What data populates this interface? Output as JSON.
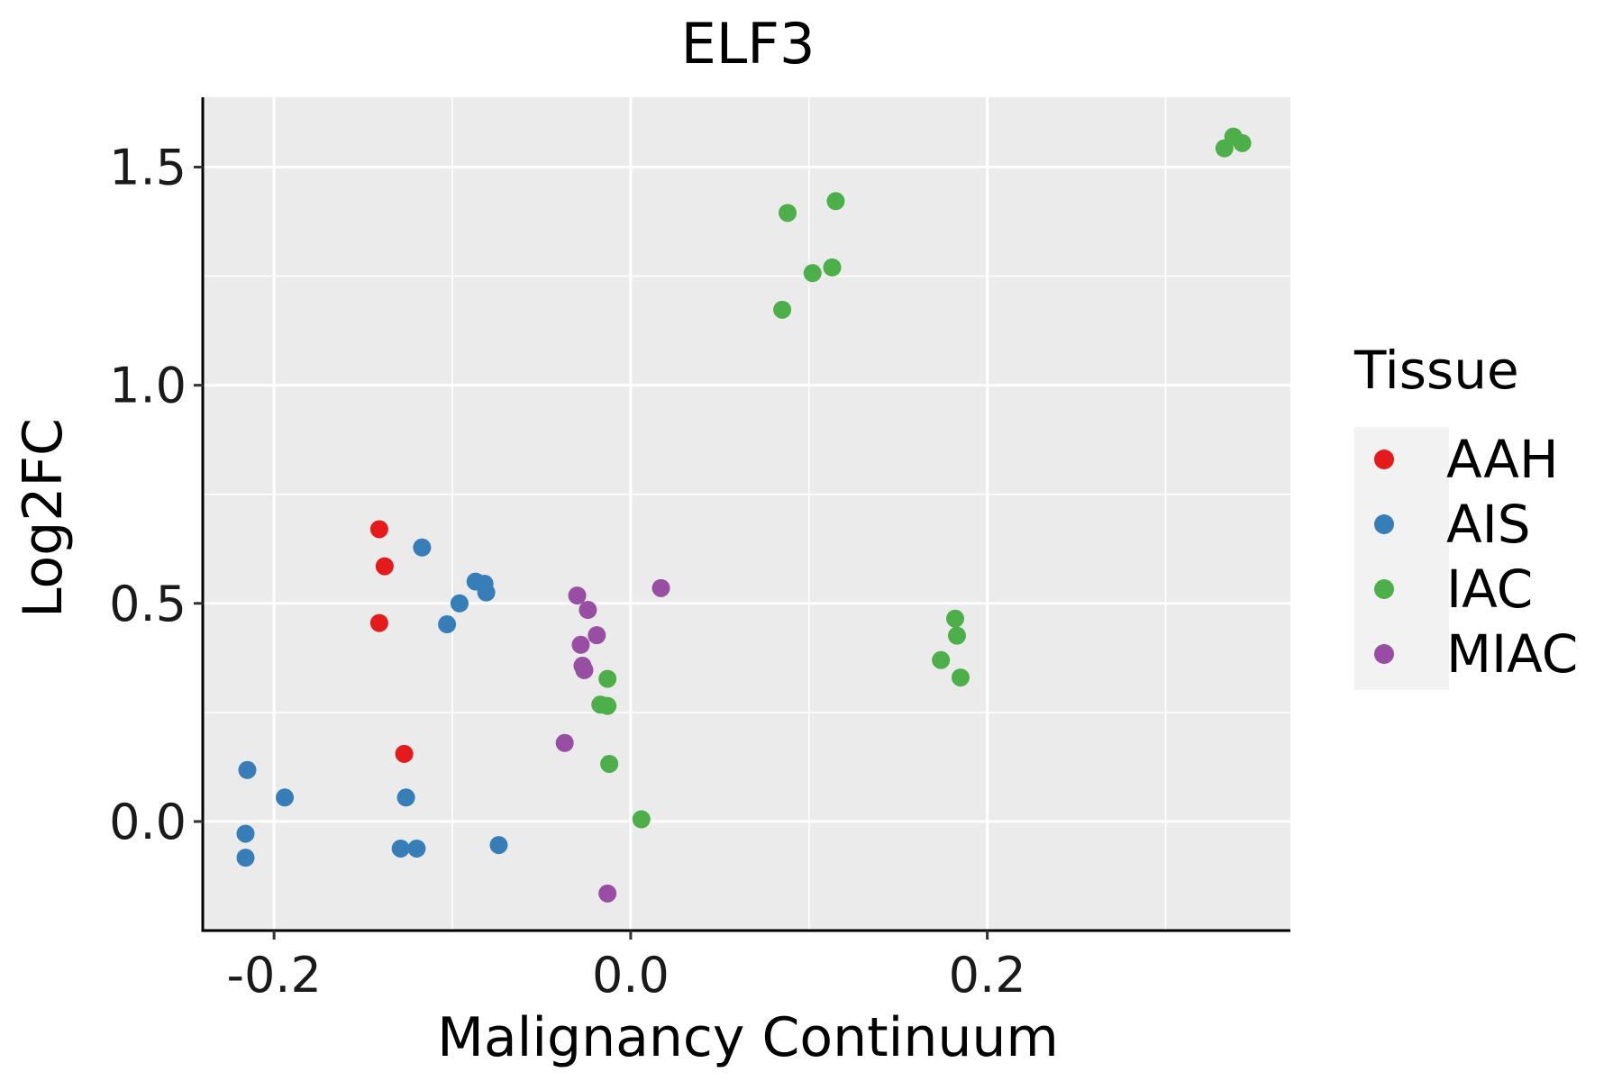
{
  "chart_data": {
    "type": "scatter",
    "title": "ELF3",
    "xlabel": "Malignancy Continuum",
    "ylabel": "Log2FC",
    "xlim": [
      -0.24,
      0.37
    ],
    "ylim": [
      -0.25,
      1.66
    ],
    "x_ticks": [
      -0.2,
      0.0,
      0.2
    ],
    "x_tick_labels": [
      "-0.2",
      "0.0",
      "0.2"
    ],
    "y_ticks": [
      0.0,
      0.5,
      1.0,
      1.5
    ],
    "y_tick_labels": [
      "0.0",
      "0.5",
      "1.0",
      "1.5"
    ],
    "x_minor_gridlines": [
      -0.1,
      0.1,
      0.3
    ],
    "y_minor_gridlines": [
      0.25,
      0.75,
      1.25
    ],
    "grid": true,
    "legend": {
      "title": "Tissue",
      "position": "right"
    },
    "series": [
      {
        "name": "AAH",
        "color": "#E41A1C",
        "points": [
          {
            "x": -0.141,
            "y": 0.67
          },
          {
            "x": -0.138,
            "y": 0.585
          },
          {
            "x": -0.141,
            "y": 0.455
          },
          {
            "x": -0.127,
            "y": 0.155
          }
        ]
      },
      {
        "name": "AIS",
        "color": "#377EB8",
        "points": [
          {
            "x": -0.117,
            "y": 0.628
          },
          {
            "x": -0.087,
            "y": 0.55
          },
          {
            "x": -0.082,
            "y": 0.545
          },
          {
            "x": -0.081,
            "y": 0.525
          },
          {
            "x": -0.096,
            "y": 0.5
          },
          {
            "x": -0.103,
            "y": 0.452
          },
          {
            "x": -0.215,
            "y": 0.118
          },
          {
            "x": -0.194,
            "y": 0.055
          },
          {
            "x": -0.126,
            "y": 0.055
          },
          {
            "x": -0.216,
            "y": -0.028
          },
          {
            "x": -0.216,
            "y": -0.083
          },
          {
            "x": -0.129,
            "y": -0.062
          },
          {
            "x": -0.12,
            "y": -0.062
          },
          {
            "x": -0.074,
            "y": -0.054
          }
        ]
      },
      {
        "name": "IAC",
        "color": "#4DAF4A",
        "points": [
          {
            "x": 0.338,
            "y": 1.57
          },
          {
            "x": 0.343,
            "y": 1.555
          },
          {
            "x": 0.333,
            "y": 1.543
          },
          {
            "x": 0.115,
            "y": 1.422
          },
          {
            "x": 0.088,
            "y": 1.395
          },
          {
            "x": 0.113,
            "y": 1.27
          },
          {
            "x": 0.102,
            "y": 1.257
          },
          {
            "x": 0.085,
            "y": 1.173
          },
          {
            "x": 0.182,
            "y": 0.465
          },
          {
            "x": 0.183,
            "y": 0.426
          },
          {
            "x": 0.174,
            "y": 0.37
          },
          {
            "x": 0.185,
            "y": 0.33
          },
          {
            "x": -0.013,
            "y": 0.327
          },
          {
            "x": -0.017,
            "y": 0.268
          },
          {
            "x": -0.013,
            "y": 0.265
          },
          {
            "x": -0.012,
            "y": 0.132
          },
          {
            "x": 0.006,
            "y": 0.005
          }
        ]
      },
      {
        "name": "MIAC",
        "color": "#984EA3",
        "points": [
          {
            "x": 0.017,
            "y": 0.535
          },
          {
            "x": -0.03,
            "y": 0.518
          },
          {
            "x": -0.024,
            "y": 0.485
          },
          {
            "x": -0.019,
            "y": 0.427
          },
          {
            "x": -0.028,
            "y": 0.405
          },
          {
            "x": -0.027,
            "y": 0.357
          },
          {
            "x": -0.026,
            "y": 0.347
          },
          {
            "x": -0.037,
            "y": 0.18
          },
          {
            "x": -0.013,
            "y": -0.165
          }
        ]
      }
    ]
  }
}
